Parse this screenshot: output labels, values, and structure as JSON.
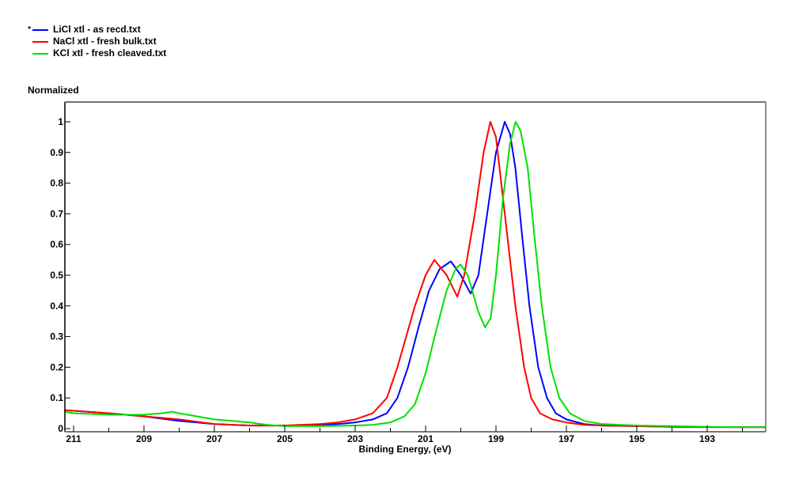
{
  "legend": {
    "items": [
      {
        "label": "LiCl xtl - as recd.txt",
        "color": "#0000ff",
        "marker": "*"
      },
      {
        "label": "NaCl xtl - fresh bulk.txt",
        "color": "#ff0000",
        "marker": ""
      },
      {
        "label": "KCl xtl - fresh cleaved.txt",
        "color": "#00e000",
        "marker": ""
      }
    ]
  },
  "axes": {
    "ylabel": "Normalized",
    "xlabel": "Binding Energy, (eV)"
  },
  "chart_data": {
    "type": "line",
    "title": "",
    "xlabel": "Binding Energy, (eV)",
    "ylabel": "Normalized",
    "xlim": [
      211.25,
      191.34
    ],
    "ylim": [
      0,
      1.07
    ],
    "x_reversed": true,
    "x_ticks": [
      211,
      209,
      207,
      205,
      203,
      201,
      199,
      197,
      195,
      193
    ],
    "x_minor_ticks": [
      210,
      208,
      206,
      204,
      202,
      200,
      198,
      196,
      194,
      192
    ],
    "y_ticks": [
      0,
      0.1,
      0.2,
      0.3,
      0.4,
      0.5,
      0.6,
      0.7,
      0.8,
      0.9,
      1
    ],
    "grid": false,
    "legend_position": "top-left",
    "series": [
      {
        "name": "LiCl xtl - as recd.txt",
        "color": "#0000ff",
        "x": [
          211.25,
          210,
          209,
          208,
          207,
          206,
          205,
          204,
          203.5,
          203,
          202.5,
          202.1,
          201.8,
          201.5,
          201.2,
          200.9,
          200.6,
          200.28,
          200.0,
          199.72,
          199.5,
          199.25,
          199.0,
          198.75,
          198.6,
          198.45,
          198.25,
          198.05,
          197.8,
          197.55,
          197.3,
          197.0,
          196.5,
          196,
          195,
          194,
          193,
          192,
          191.34
        ],
        "y": [
          0.06,
          0.05,
          0.04,
          0.025,
          0.015,
          0.01,
          0.01,
          0.012,
          0.015,
          0.02,
          0.03,
          0.05,
          0.1,
          0.2,
          0.33,
          0.45,
          0.52,
          0.545,
          0.5,
          0.44,
          0.5,
          0.7,
          0.9,
          1.0,
          0.96,
          0.85,
          0.62,
          0.4,
          0.2,
          0.1,
          0.05,
          0.03,
          0.015,
          0.01,
          0.008,
          0.006,
          0.005,
          0.005,
          0.005
        ]
      },
      {
        "name": "NaCl xtl - fresh bulk.txt",
        "color": "#ff0000",
        "x": [
          211.25,
          210,
          209,
          208,
          207,
          206,
          205,
          204,
          203.5,
          203,
          202.5,
          202.1,
          201.8,
          201.55,
          201.3,
          201.0,
          200.75,
          200.4,
          200.1,
          199.9,
          199.6,
          199.35,
          199.16,
          199.0,
          198.85,
          198.65,
          198.45,
          198.2,
          198.0,
          197.75,
          197.4,
          197.0,
          196.5,
          196,
          195,
          194,
          193,
          192,
          191.34
        ],
        "y": [
          0.06,
          0.05,
          0.04,
          0.03,
          0.015,
          0.01,
          0.01,
          0.015,
          0.02,
          0.03,
          0.05,
          0.1,
          0.2,
          0.3,
          0.4,
          0.5,
          0.55,
          0.5,
          0.43,
          0.5,
          0.7,
          0.9,
          1.0,
          0.95,
          0.8,
          0.6,
          0.4,
          0.2,
          0.1,
          0.05,
          0.03,
          0.02,
          0.012,
          0.01,
          0.008,
          0.006,
          0.005,
          0.005,
          0.005
        ]
      },
      {
        "name": "KCl xtl - fresh cleaved.txt",
        "color": "#00e000",
        "x": [
          211.25,
          211,
          210.5,
          210,
          209.5,
          209,
          208.5,
          208.2,
          208,
          207.5,
          207,
          206.5,
          206,
          205.5,
          205,
          204,
          203,
          202.5,
          202,
          201.6,
          201.3,
          201.0,
          200.7,
          200.4,
          200.15,
          200.01,
          199.8,
          199.5,
          199.31,
          199.15,
          199.0,
          198.8,
          198.6,
          198.44,
          198.3,
          198.1,
          197.9,
          197.7,
          197.45,
          197.2,
          196.9,
          196.5,
          196,
          195,
          194,
          193,
          192,
          191.34
        ],
        "y": [
          0.055,
          0.05,
          0.048,
          0.045,
          0.045,
          0.045,
          0.05,
          0.055,
          0.05,
          0.04,
          0.03,
          0.025,
          0.02,
          0.012,
          0.008,
          0.008,
          0.01,
          0.012,
          0.02,
          0.04,
          0.08,
          0.18,
          0.32,
          0.45,
          0.52,
          0.535,
          0.5,
          0.38,
          0.33,
          0.36,
          0.5,
          0.75,
          0.93,
          1.0,
          0.97,
          0.85,
          0.62,
          0.4,
          0.2,
          0.1,
          0.05,
          0.025,
          0.015,
          0.01,
          0.008,
          0.006,
          0.005,
          0.005
        ]
      }
    ]
  }
}
